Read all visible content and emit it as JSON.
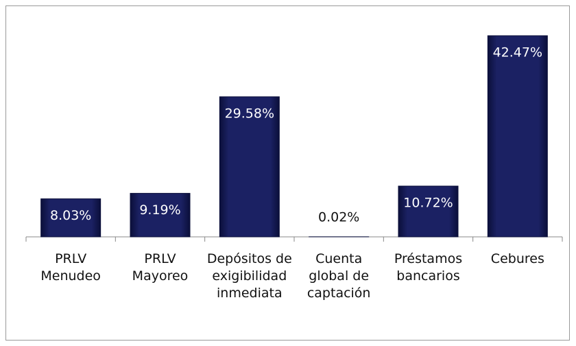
{
  "chart_data": {
    "type": "bar",
    "categories": [
      "PRLV Menudeo",
      "PRLV Mayoreo",
      "Depósitos de exigibilidad inmediata",
      "Cuenta global de captación",
      "Préstamos bancarios",
      "Cebures"
    ],
    "values": [
      8.03,
      9.19,
      29.58,
      0.02,
      10.72,
      42.47
    ],
    "value_labels": [
      "8.03%",
      "9.19%",
      "29.58%",
      "0.02%",
      "10.72%",
      "42.47%"
    ],
    "color": "#1b2163"
  }
}
